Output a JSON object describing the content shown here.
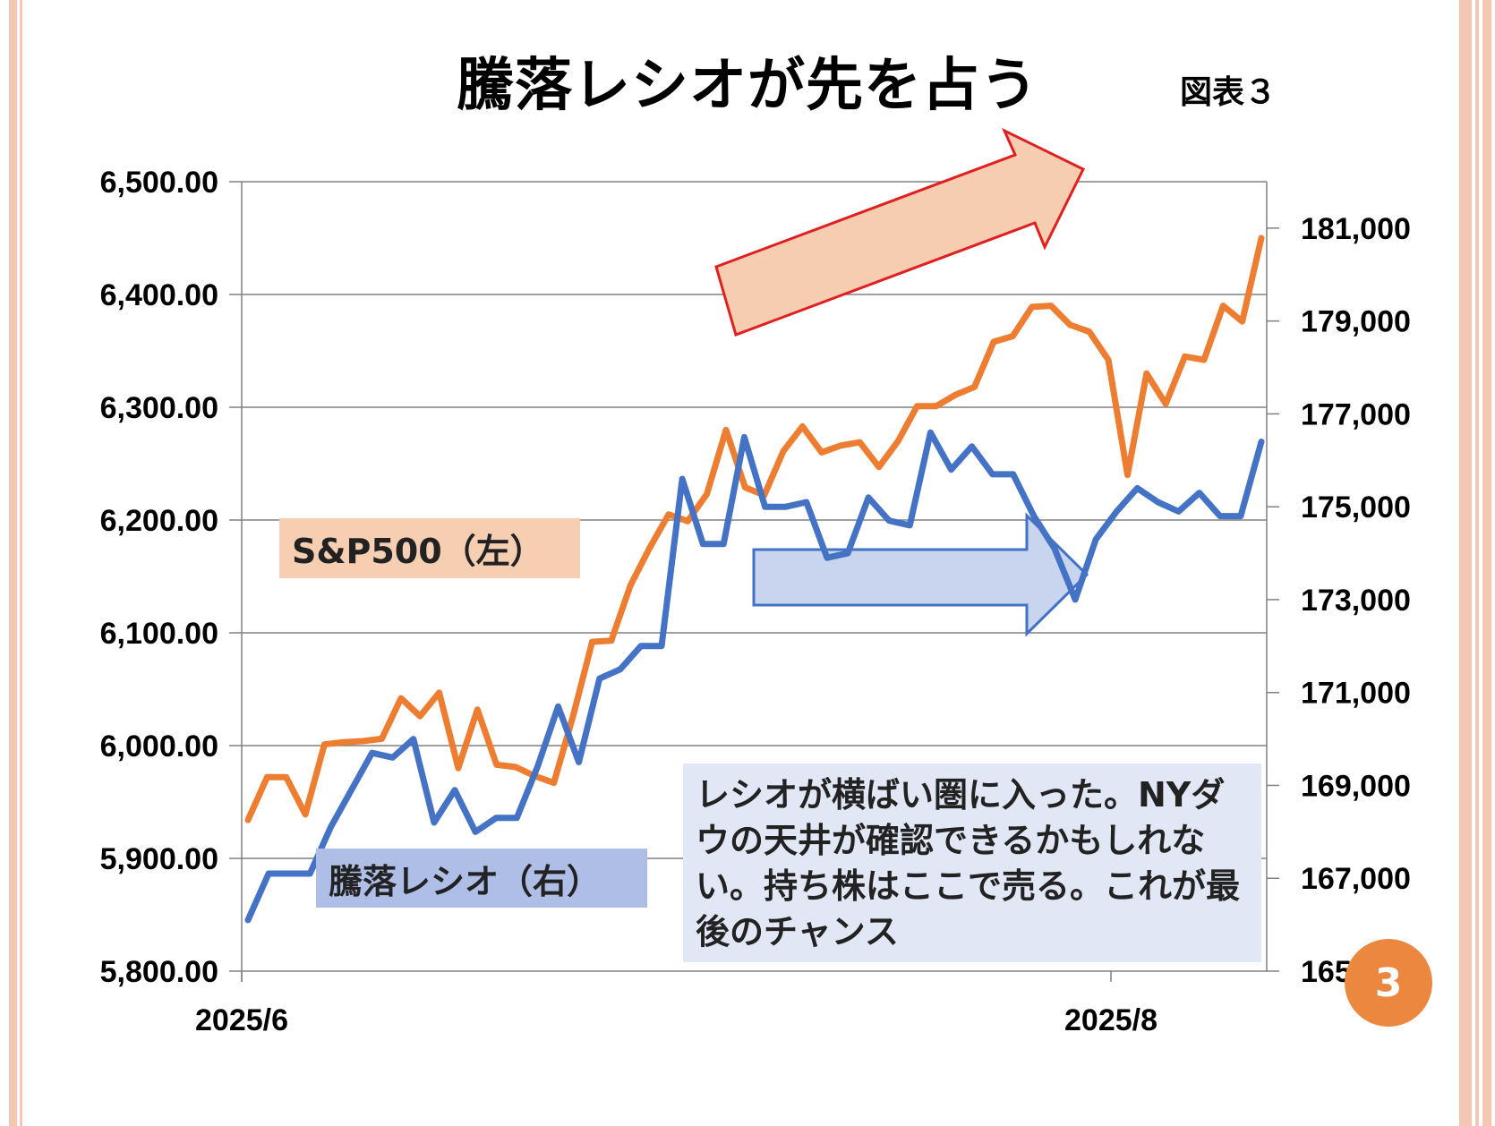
{
  "title": "騰落レシオが先を占う",
  "figure_label": "図表３",
  "annotation_text": "レシオが横ばい圏に入った。NYダウの天井が確認できるかもしれない。持ち株はここで売る。これが最後のチャンス",
  "page_number": "3",
  "colors": {
    "sp500_line": "#ed7d31",
    "ratio_line": "#4472c4",
    "sp500_label_bg": "#f6ceb2",
    "ratio_label_bg": "#afbee7",
    "up_arrow_fill": "#f6cdb0",
    "up_arrow_stroke": "#e02020",
    "flat_arrow_fill": "#c9d5ee",
    "flat_arrow_stroke": "#4472c4",
    "grid": "#808080",
    "border_stripe": "#f4c7b3",
    "page_badge": "#ec8740"
  },
  "chart_data": {
    "type": "line",
    "x_tick_labels": [
      "2025/6",
      "2025/8"
    ],
    "y_left": {
      "ticks": [
        "6,500.00",
        "6,400.00",
        "6,300.00",
        "6,200.00",
        "6,100.00",
        "6,000.00",
        "5,900.00",
        "5,800.00"
      ],
      "range": [
        5800,
        6500
      ]
    },
    "y_right": {
      "ticks": [
        "181,000",
        "179,000",
        "177,000",
        "175,000",
        "173,000",
        "171,000",
        "169,000",
        "167,000",
        "165,000"
      ],
      "range": [
        165000,
        182000
      ]
    },
    "grid": true,
    "series": [
      {
        "name": "S&P500（左）",
        "axis": "left",
        "values": [
          5934,
          5972,
          5972,
          5939,
          6001,
          6003,
          6004,
          6006,
          6042,
          6026,
          6047,
          5980,
          6032,
          5983,
          5981,
          5973,
          5967,
          6026,
          6092,
          6093,
          6142,
          6175,
          6205,
          6199,
          6223,
          6280,
          6229,
          6222,
          6261,
          6283,
          6260,
          6266,
          6269,
          6247,
          6270,
          6301,
          6301,
          6311,
          6318,
          6358,
          6363,
          6389,
          6390,
          6373,
          6367,
          6342,
          6240,
          6330,
          6303,
          6345,
          6342,
          6390,
          6376,
          6450
        ]
      },
      {
        "name": "騰落レシオ（右）",
        "axis": "right",
        "values": [
          166100,
          167100,
          167100,
          167100,
          168100,
          168900,
          169700,
          169600,
          170000,
          168200,
          168900,
          168000,
          168300,
          168300,
          169400,
          170700,
          169500,
          171300,
          171500,
          172000,
          172000,
          175600,
          174200,
          174200,
          176500,
          175000,
          175000,
          175100,
          173900,
          174000,
          175200,
          174700,
          174600,
          176600,
          175800,
          176300,
          175700,
          175700,
          174800,
          174100,
          173000,
          174300,
          174900,
          175400,
          175100,
          174900,
          175300,
          174800,
          174800,
          176400
        ]
      }
    ],
    "legend_labels": [
      "S&P500（左）",
      "騰落レシオ（右）"
    ]
  }
}
